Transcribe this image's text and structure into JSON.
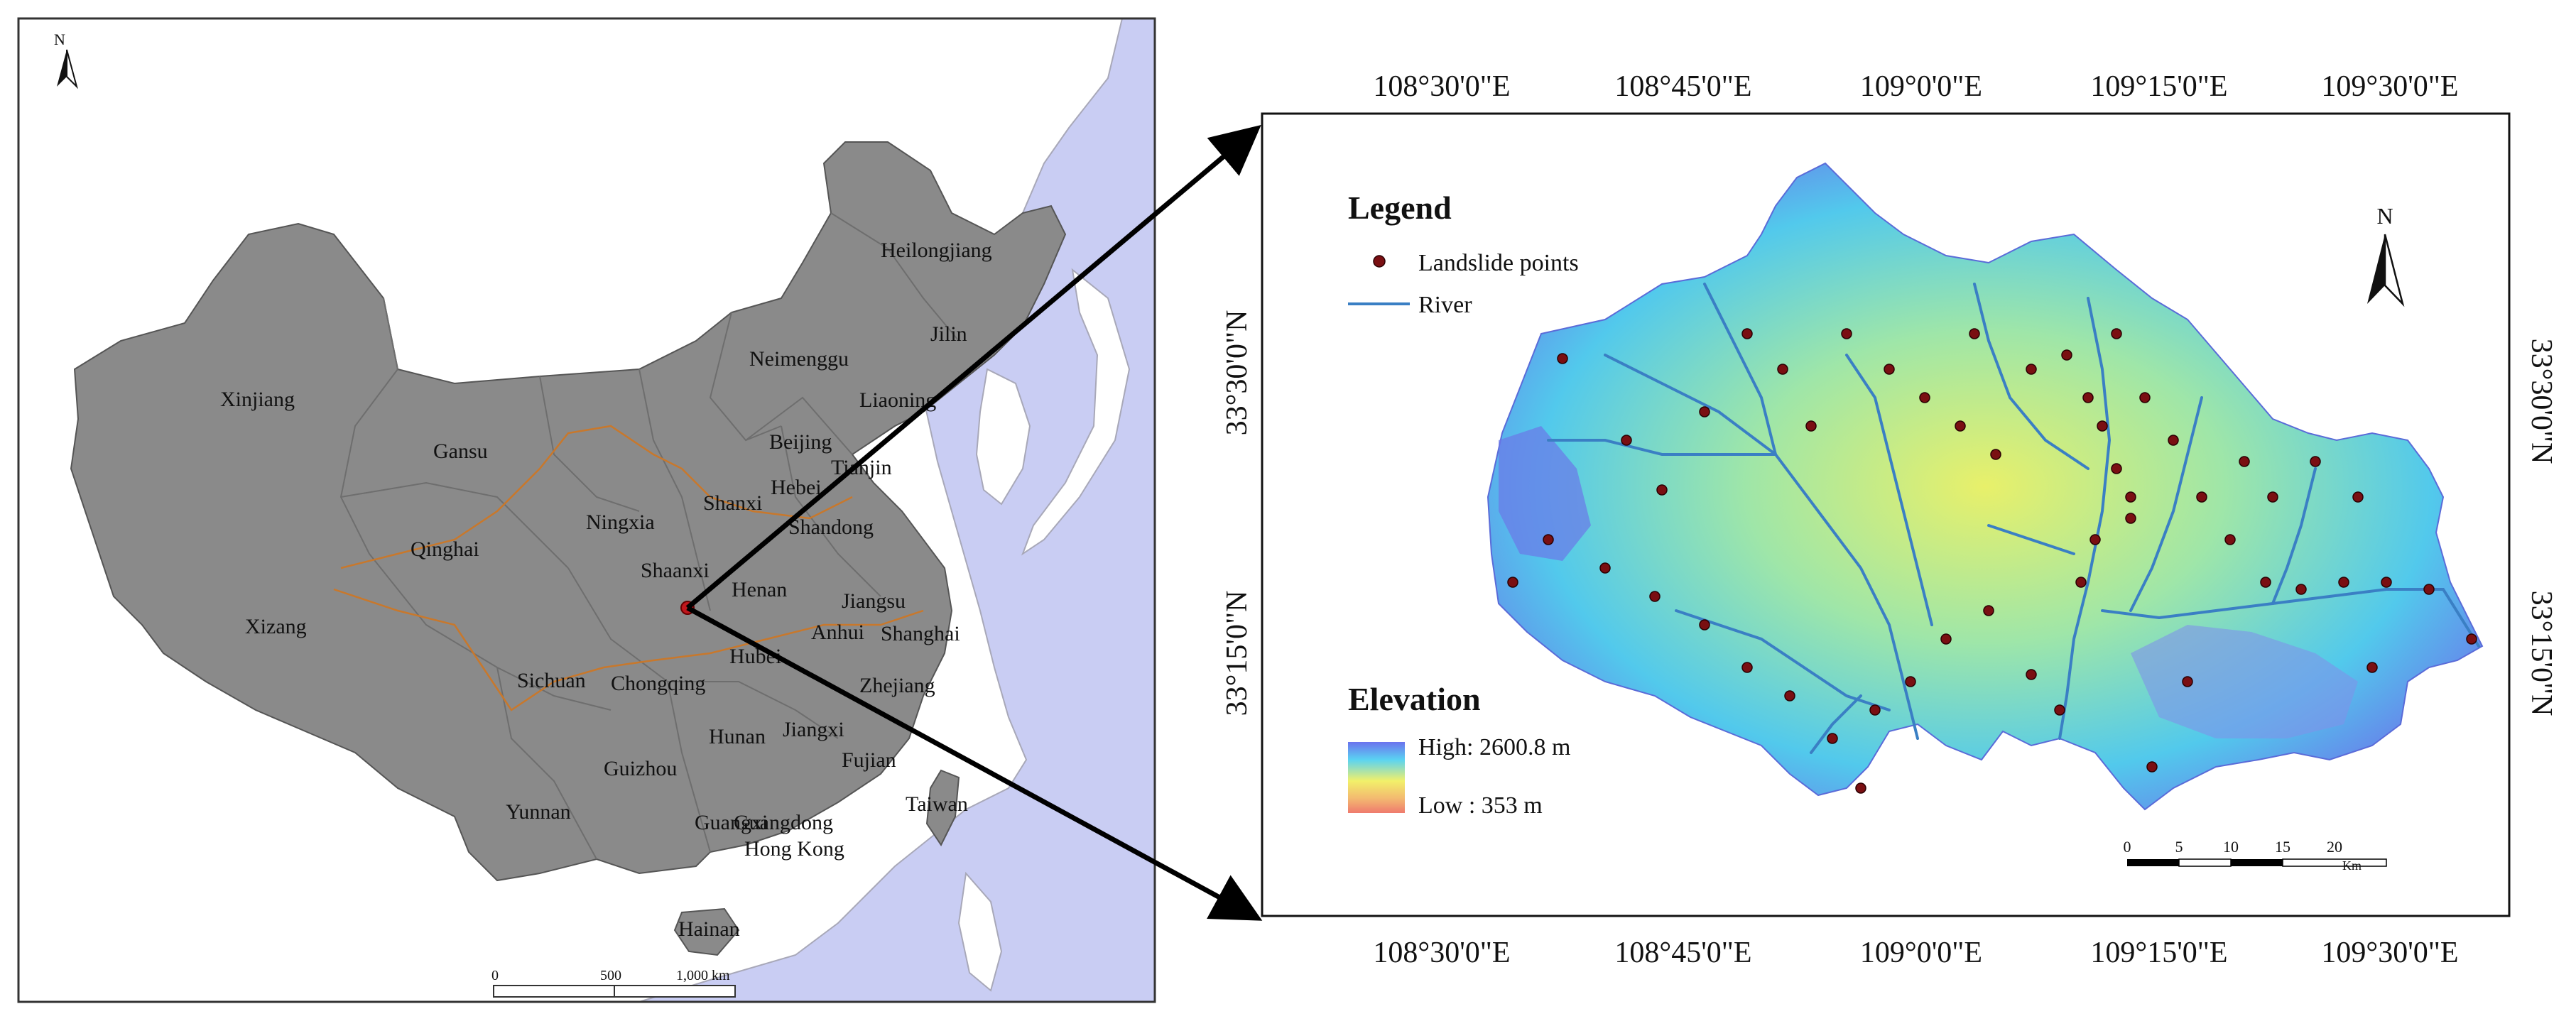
{
  "china_map": {
    "north_label": "N",
    "provinces": [
      {
        "name": "Heilongjiang"
      },
      {
        "name": "Jilin"
      },
      {
        "name": "Liaoning"
      },
      {
        "name": "Neimenggu"
      },
      {
        "name": "Xinjiang"
      },
      {
        "name": "Gansu"
      },
      {
        "name": "Beijing"
      },
      {
        "name": "Tianjin"
      },
      {
        "name": "Hebei"
      },
      {
        "name": "Shanxi"
      },
      {
        "name": "Ningxia"
      },
      {
        "name": "Qinghai"
      },
      {
        "name": "Shandong"
      },
      {
        "name": "Shaanxi"
      },
      {
        "name": "Henan"
      },
      {
        "name": "Jiangsu"
      },
      {
        "name": "Xizang"
      },
      {
        "name": "Anhui"
      },
      {
        "name": "Shanghai"
      },
      {
        "name": "Hubei"
      },
      {
        "name": "Sichuan"
      },
      {
        "name": "Chongqing"
      },
      {
        "name": "Zhejiang"
      },
      {
        "name": "Hunan"
      },
      {
        "name": "Jiangxi"
      },
      {
        "name": "Fujian"
      },
      {
        "name": "Guizhou"
      },
      {
        "name": "Taiwan"
      },
      {
        "name": "Yunnan"
      },
      {
        "name": "Guangxi"
      },
      {
        "name": "Guangdong"
      },
      {
        "name": "Hong Kong"
      },
      {
        "name": "Hainan"
      }
    ],
    "scale_bar": {
      "ticks": [
        "0",
        "500",
        "1,000 km"
      ]
    }
  },
  "study_area_map": {
    "north_label": "N",
    "top_lon_labels": [
      "108°30'0\"E",
      "108°45'0\"E",
      "109°0'0\"E",
      "109°15'0\"E",
      "109°30'0\"E"
    ],
    "bottom_lon_labels": [
      "108°30'0\"E",
      "108°45'0\"E",
      "109°0'0\"E",
      "109°15'0\"E",
      "109°30'0\"E"
    ],
    "left_lat_labels": [
      "33°30'0\"N",
      "33°15'0\"N"
    ],
    "right_lat_labels": [
      "33°30'0\"N",
      "33°15'0\"N"
    ],
    "legend": {
      "title": "Legend",
      "landslide_label": "Landslide points",
      "river_label": "River",
      "elevation_title": "Elevation",
      "high_label": "High: 2600.8 m",
      "low_label": "Low : 353 m"
    },
    "scale_bar": {
      "ticks": [
        "0",
        "5",
        "10",
        "15",
        "20"
      ],
      "unit": "Km"
    },
    "colors": {
      "landslide": "#7a0f12",
      "river": "#3a7fc4",
      "ocean": "#c9cdf3",
      "china_fill": "#8a8a8a"
    }
  }
}
